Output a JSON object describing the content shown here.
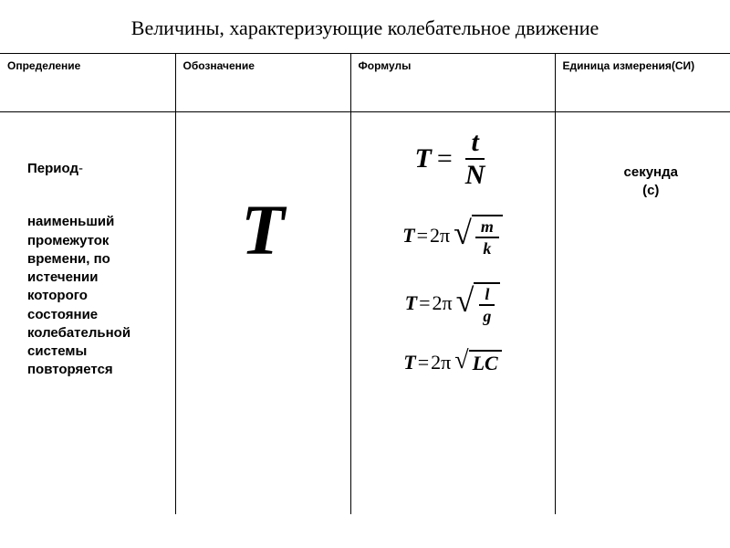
{
  "title": "Величины, характеризующие колебательное движение",
  "headers": {
    "def": "Определение",
    "sym": "Обозначение",
    "for": "Формулы",
    "uni": "Единица измерения(СИ)"
  },
  "row": {
    "term": "Период",
    "dash": "-",
    "desc": "наименьший промежуток времени, по истечении которого состояние колебательной системы повторяется",
    "symbol": "T",
    "unit_name": "секунда",
    "unit_abbr": "(с)",
    "formulas": {
      "f1": {
        "lhs": "T",
        "eq": "=",
        "num": "t",
        "den": "N"
      },
      "f2": {
        "lhs": "T",
        "eq": "=",
        "coef": "2π",
        "num": "m",
        "den": "k"
      },
      "f3": {
        "lhs": "T",
        "eq": "=",
        "coef": "2π",
        "num": "l",
        "den": "g"
      },
      "f4": {
        "lhs": "T",
        "eq": "=",
        "coef": "2π",
        "arg": "LC"
      }
    }
  },
  "colors": {
    "bg": "#ffffff",
    "text": "#000000",
    "border": "#000000"
  },
  "typography": {
    "title_fontsize": 22,
    "header_fontsize": 12,
    "body_fontsize": 15,
    "symbol_fontsize": 78,
    "formula_fontsize_large": 30,
    "formula_fontsize": 22
  }
}
